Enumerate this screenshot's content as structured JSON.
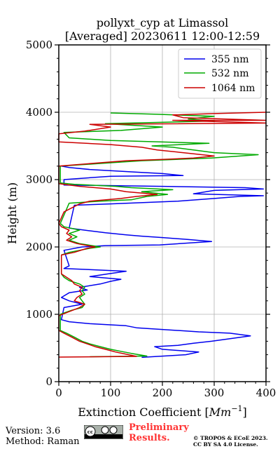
{
  "chart_data": {
    "type": "line",
    "title": "pollyxt_cyp at Limassol",
    "subtitle": "[Averaged] 20230611 12:00-12:59",
    "xlabel": "Extinction Coefficient [",
    "xlabel_unit": "Mm",
    "xlabel_unit_exp": "−1",
    "xlabel_close": "]",
    "ylabel": "Height (m)",
    "xlim": [
      0,
      400
    ],
    "ylim": [
      0,
      5000
    ],
    "x_ticks": [
      0,
      100,
      200,
      300,
      400
    ],
    "y_ticks": [
      0,
      1000,
      2000,
      3000,
      4000,
      5000
    ],
    "x_tick_labels": [
      "0",
      "100",
      "200",
      "300",
      "400"
    ],
    "y_tick_labels": [
      "0",
      "1000",
      "2000",
      "3000",
      "4000",
      "5000"
    ],
    "grid": true,
    "legend_position": "top-right",
    "series": [
      {
        "name": "355 nm",
        "color": "#0000ee",
        "points": [
          [
            160,
            360
          ],
          [
            245,
            400
          ],
          [
            270,
            440
          ],
          [
            200,
            480
          ],
          [
            185,
            520
          ],
          [
            230,
            540
          ],
          [
            260,
            570
          ],
          [
            295,
            600
          ],
          [
            370,
            680
          ],
          [
            330,
            720
          ],
          [
            270,
            740
          ],
          [
            210,
            770
          ],
          [
            150,
            800
          ],
          [
            130,
            830
          ],
          [
            60,
            860
          ],
          [
            20,
            890
          ],
          [
            5,
            920
          ],
          [
            10,
            1100
          ],
          [
            45,
            1150
          ],
          [
            20,
            1200
          ],
          [
            5,
            1250
          ],
          [
            20,
            1320
          ],
          [
            55,
            1360
          ],
          [
            40,
            1400
          ],
          [
            80,
            1450
          ],
          [
            100,
            1490
          ],
          [
            120,
            1520
          ],
          [
            60,
            1560
          ],
          [
            95,
            1600
          ],
          [
            130,
            1640
          ],
          [
            10,
            1680
          ],
          [
            20,
            1720
          ],
          [
            10,
            1950
          ],
          [
            45,
            2000
          ],
          [
            90,
            2020
          ],
          [
            195,
            2030
          ],
          [
            295,
            2080
          ],
          [
            250,
            2110
          ],
          [
            200,
            2140
          ],
          [
            160,
            2160
          ],
          [
            130,
            2180
          ],
          [
            90,
            2210
          ],
          [
            60,
            2240
          ],
          [
            20,
            2280
          ],
          [
            30,
            2620
          ],
          [
            100,
            2640
          ],
          [
            230,
            2680
          ],
          [
            300,
            2720
          ],
          [
            350,
            2750
          ],
          [
            395,
            2760
          ],
          [
            260,
            2790
          ],
          [
            300,
            2840
          ],
          [
            395,
            2860
          ],
          [
            360,
            2880
          ],
          [
            200,
            2900
          ],
          [
            10,
            2920
          ],
          [
            10,
            3000
          ],
          [
            100,
            3050
          ],
          [
            240,
            3060
          ],
          [
            200,
            3090
          ],
          [
            150,
            3110
          ],
          [
            60,
            3150
          ],
          [
            20,
            3180
          ],
          [
            5,
            3200
          ]
        ]
      },
      {
        "name": "532 nm",
        "color": "#00aa00",
        "points": [
          [
            60,
            370
          ],
          [
            170,
            380
          ],
          [
            140,
            420
          ],
          [
            120,
            450
          ],
          [
            100,
            480
          ],
          [
            80,
            520
          ],
          [
            60,
            560
          ],
          [
            45,
            600
          ],
          [
            30,
            660
          ],
          [
            15,
            720
          ],
          [
            3,
            760
          ],
          [
            3,
            1000
          ],
          [
            25,
            1060
          ],
          [
            45,
            1100
          ],
          [
            50,
            1150
          ],
          [
            45,
            1200
          ],
          [
            40,
            1250
          ],
          [
            50,
            1300
          ],
          [
            45,
            1350
          ],
          [
            50,
            1400
          ],
          [
            40,
            1450
          ],
          [
            20,
            1500
          ],
          [
            10,
            1550
          ],
          [
            5,
            1600
          ],
          [
            5,
            1880
          ],
          [
            20,
            1920
          ],
          [
            60,
            1980
          ],
          [
            80,
            2000
          ],
          [
            40,
            2050
          ],
          [
            20,
            2100
          ],
          [
            35,
            2150
          ],
          [
            20,
            2200
          ],
          [
            40,
            2250
          ],
          [
            10,
            2300
          ],
          [
            3,
            2350
          ],
          [
            20,
            2650
          ],
          [
            80,
            2680
          ],
          [
            140,
            2700
          ],
          [
            170,
            2750
          ],
          [
            210,
            2780
          ],
          [
            160,
            2820
          ],
          [
            220,
            2850
          ],
          [
            140,
            2880
          ],
          [
            110,
            2900
          ],
          [
            30,
            2930
          ],
          [
            3,
            2950
          ],
          [
            3,
            3200
          ],
          [
            100,
            3250
          ],
          [
            160,
            3280
          ],
          [
            295,
            3320
          ],
          [
            385,
            3370
          ],
          [
            300,
            3400
          ],
          [
            260,
            3440
          ],
          [
            220,
            3480
          ],
          [
            180,
            3500
          ],
          [
            290,
            3540
          ],
          [
            100,
            3580
          ],
          [
            20,
            3620
          ],
          [
            10,
            3700
          ],
          [
            120,
            3730
          ],
          [
            200,
            3780
          ],
          [
            90,
            3830
          ],
          [
            300,
            3870
          ],
          [
            250,
            3900
          ],
          [
            300,
            3940
          ],
          [
            190,
            3970
          ],
          [
            100,
            3990
          ]
        ]
      },
      {
        "name": "1064 nm",
        "color": "#cc0000",
        "points": [
          [
            0,
            365
          ],
          [
            150,
            375
          ],
          [
            135,
            400
          ],
          [
            110,
            440
          ],
          [
            90,
            480
          ],
          [
            70,
            520
          ],
          [
            55,
            560
          ],
          [
            40,
            600
          ],
          [
            25,
            660
          ],
          [
            10,
            720
          ],
          [
            0,
            760
          ],
          [
            0,
            980
          ],
          [
            20,
            1040
          ],
          [
            40,
            1100
          ],
          [
            50,
            1150
          ],
          [
            30,
            1200
          ],
          [
            35,
            1250
          ],
          [
            45,
            1300
          ],
          [
            40,
            1350
          ],
          [
            45,
            1400
          ],
          [
            30,
            1450
          ],
          [
            25,
            1500
          ],
          [
            15,
            1550
          ],
          [
            5,
            1600
          ],
          [
            5,
            1880
          ],
          [
            30,
            1920
          ],
          [
            55,
            1980
          ],
          [
            70,
            2000
          ],
          [
            35,
            2050
          ],
          [
            15,
            2100
          ],
          [
            25,
            2150
          ],
          [
            15,
            2200
          ],
          [
            20,
            2250
          ],
          [
            5,
            2300
          ],
          [
            0,
            2350
          ],
          [
            10,
            2520
          ],
          [
            20,
            2560
          ],
          [
            40,
            2640
          ],
          [
            60,
            2680
          ],
          [
            120,
            2720
          ],
          [
            150,
            2750
          ],
          [
            190,
            2780
          ],
          [
            130,
            2820
          ],
          [
            100,
            2860
          ],
          [
            40,
            2900
          ],
          [
            0,
            2940
          ],
          [
            0,
            3200
          ],
          [
            80,
            3250
          ],
          [
            130,
            3280
          ],
          [
            200,
            3300
          ],
          [
            260,
            3320
          ],
          [
            300,
            3350
          ],
          [
            240,
            3400
          ],
          [
            190,
            3440
          ],
          [
            160,
            3480
          ],
          [
            100,
            3520
          ],
          [
            0,
            3560
          ],
          [
            0,
            3680
          ],
          [
            50,
            3720
          ],
          [
            100,
            3780
          ],
          [
            60,
            3820
          ],
          [
            400,
            3840
          ],
          [
            220,
            3880
          ],
          [
            400,
            3880
          ],
          [
            240,
            3920
          ],
          [
            220,
            3960
          ],
          [
            300,
            3980
          ],
          [
            400,
            4000
          ]
        ]
      }
    ]
  },
  "footer": {
    "version": "Version: 3.6",
    "method": "Method: Raman",
    "preliminary_line1": "Preliminary",
    "preliminary_line2": "Results.",
    "copyright_line1": "© TROPOS & ECoE 2023.",
    "copyright_line2": "CC BY SA 4.0 License.",
    "preliminary_color": "#ff3333"
  }
}
